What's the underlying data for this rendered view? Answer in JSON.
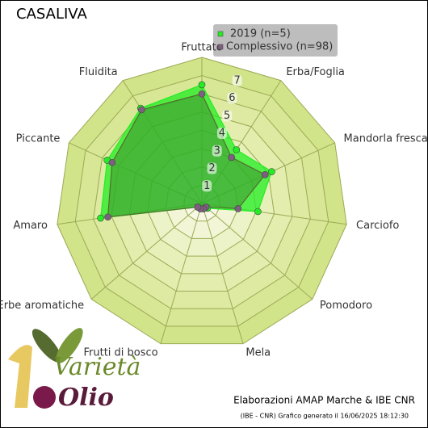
{
  "chart_data": {
    "type": "radar",
    "title": "CASALIVA",
    "categories": [
      "Fruttato",
      "Erba/Foglia",
      "Mandorla fresca",
      "Carciofo",
      "Pomodoro",
      "Mela",
      "Frutti di bosco",
      "Erbe aromatiche",
      "Amaro",
      "Piccante",
      "Fluidita"
    ],
    "series": [
      {
        "name": "2019 (n=5)",
        "color": "#22ee22",
        "values": [
          6.5,
          3.5,
          4.2,
          3.1,
          0.4,
          0.3,
          0.3,
          0.3,
          5.6,
          5.7,
          6.2
        ]
      },
      {
        "name": "Complessivo (n=98)",
        "color": "#7f5f7f",
        "values": [
          6.0,
          3.0,
          3.8,
          2.0,
          0.3,
          0.3,
          0.3,
          0.3,
          5.2,
          5.4,
          6.1
        ]
      }
    ],
    "ylim": [
      0,
      8
    ],
    "yticks": [
      1,
      2,
      3,
      4,
      5,
      6,
      7
    ],
    "grid": true,
    "footer": "Elaborazioni AMAP Marche & IBE CNR",
    "footnote": "(IBE - CNR) Grafico generato il 16/06/2025 18:12:30",
    "logo": {
      "line1": "Varietà",
      "line2": "Olio"
    }
  }
}
